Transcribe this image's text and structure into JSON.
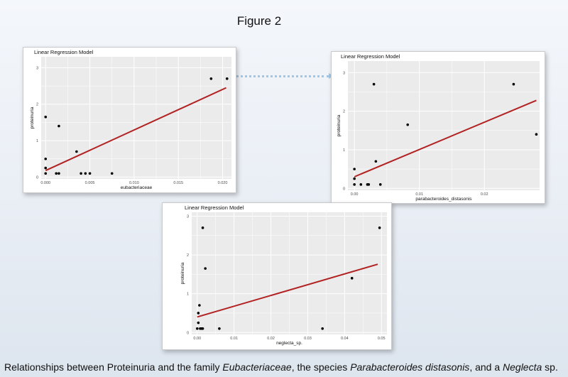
{
  "figure_title": "Figure 2",
  "caption": {
    "t1": "Relationships between Proteinuria and the family ",
    "i1": "Eubacteriaceae",
    "t2": ", the species ",
    "i2": "Parabacteroides distasonis",
    "t3": ", and a ",
    "i3": "Neglecta",
    "t4": " sp."
  },
  "colors": {
    "plot_bg": "#ebebeb",
    "grid": "#ffffff",
    "point": "#000000",
    "regression_line": "#b22222",
    "connector": "#9fc7e8"
  },
  "chart_data": [
    {
      "type": "scatter",
      "title": "Linear Regression Model",
      "xlabel": "eubacteriaceae",
      "ylabel": "proteinuria",
      "xlim": [
        -0.0005,
        0.021
      ],
      "ylim": [
        -0.05,
        3.3
      ],
      "xticks": [
        0.0,
        0.005,
        0.01,
        0.015,
        0.02
      ],
      "xtick_labels": [
        "0.000",
        "0.005",
        "0.010",
        "0.015",
        "0.020"
      ],
      "yticks": [
        0,
        1,
        2,
        3
      ],
      "ytick_labels": [
        "0",
        "1",
        "2",
        "3"
      ],
      "grid": true,
      "points": [
        [
          0.0,
          0.1
        ],
        [
          0.0,
          0.25
        ],
        [
          0.0,
          0.5
        ],
        [
          0.0,
          1.65
        ],
        [
          0.0012,
          0.1
        ],
        [
          0.0015,
          0.1
        ],
        [
          0.0015,
          1.4
        ],
        [
          0.0035,
          0.7
        ],
        [
          0.004,
          0.1
        ],
        [
          0.0045,
          0.1
        ],
        [
          0.005,
          0.1
        ],
        [
          0.0075,
          0.1
        ],
        [
          0.0187,
          2.7
        ],
        [
          0.0205,
          2.7
        ]
      ],
      "regression": [
        [
          0.0,
          0.18
        ],
        [
          0.0204,
          2.45
        ]
      ]
    },
    {
      "type": "scatter",
      "title": "Linear Regression Model",
      "xlabel": "parabacteroides_distasonis",
      "ylabel": "proteinuria",
      "xlim": [
        -0.001,
        0.0285
      ],
      "ylim": [
        -0.05,
        3.3
      ],
      "xticks": [
        0.0,
        0.01,
        0.02
      ],
      "xtick_labels": [
        "0.00",
        "0.01",
        "0.02"
      ],
      "yticks": [
        0,
        1,
        2,
        3
      ],
      "ytick_labels": [
        "0",
        "1",
        "2",
        "3"
      ],
      "grid": true,
      "points": [
        [
          0.0,
          0.1
        ],
        [
          0.0,
          0.25
        ],
        [
          0.0,
          0.5
        ],
        [
          0.001,
          0.1
        ],
        [
          0.002,
          0.1
        ],
        [
          0.0022,
          0.1
        ],
        [
          0.003,
          2.7
        ],
        [
          0.0033,
          0.7
        ],
        [
          0.004,
          0.1
        ],
        [
          0.0082,
          1.65
        ],
        [
          0.0245,
          2.7
        ],
        [
          0.028,
          1.4
        ]
      ],
      "regression": [
        [
          0.0,
          0.3
        ],
        [
          0.028,
          2.28
        ]
      ]
    },
    {
      "type": "scatter",
      "title": "Linear Regression Model",
      "xlabel": "neglecta_sp.",
      "ylabel": "proteinuria",
      "xlim": [
        -0.0015,
        0.0515
      ],
      "ylim": [
        -0.05,
        3.1
      ],
      "xticks": [
        0.0,
        0.01,
        0.02,
        0.03,
        0.04,
        0.05
      ],
      "xtick_labels": [
        "0.00",
        "0.01",
        "0.02",
        "0.03",
        "0.04",
        "0.05"
      ],
      "yticks": [
        0,
        1,
        2,
        3
      ],
      "ytick_labels": [
        "0",
        "1",
        "2",
        "3"
      ],
      "grid": true,
      "points": [
        [
          0.0,
          0.1
        ],
        [
          0.0003,
          0.25
        ],
        [
          0.0003,
          0.5
        ],
        [
          0.0006,
          0.7
        ],
        [
          0.0008,
          0.1
        ],
        [
          0.0012,
          0.1
        ],
        [
          0.0015,
          0.1
        ],
        [
          0.0015,
          2.7
        ],
        [
          0.0022,
          1.65
        ],
        [
          0.006,
          0.1
        ],
        [
          0.034,
          0.1
        ],
        [
          0.042,
          1.4
        ],
        [
          0.0495,
          2.7
        ]
      ],
      "regression": [
        [
          0.0,
          0.4
        ],
        [
          0.049,
          1.76
        ]
      ]
    }
  ]
}
